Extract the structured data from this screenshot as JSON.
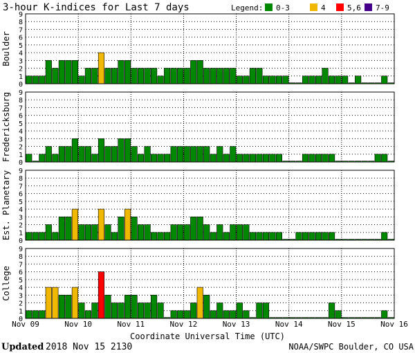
{
  "header": {
    "title": "3-hour K-indices for Last 7 days",
    "legend_label": "Legend:",
    "legend": [
      {
        "label": "0-3",
        "color": "#008800"
      },
      {
        "label": "4",
        "color": "#f0b800"
      },
      {
        "label": "5,6",
        "color": "#ff0000"
      },
      {
        "label": "7-9",
        "color": "#440088"
      }
    ]
  },
  "footer": {
    "updated_label": "Updated",
    "updated_value": "2018 Nov 15 2130",
    "credit": "NOAA/SWPC Boulder, CO USA"
  },
  "chart_data": {
    "type": "bar",
    "xlabel": "Coordinate Universal Time (UTC)",
    "x_tick_labels": [
      "Nov 09",
      "Nov 10",
      "Nov 11",
      "Nov 12",
      "Nov 13",
      "Nov 14",
      "Nov 15",
      "Nov 16"
    ],
    "ylim": [
      0,
      9
    ],
    "y_ticks": [
      "0",
      "1",
      "2",
      "3",
      "4",
      "5",
      "6",
      "7",
      "8",
      "9"
    ],
    "bins_per_day": 8,
    "series": [
      {
        "name": "Boulder",
        "values": [
          1,
          1,
          1,
          3,
          2,
          3,
          3,
          3,
          1,
          2,
          2,
          4,
          2,
          2,
          3,
          3,
          2,
          2,
          2,
          2,
          1,
          2,
          2,
          2,
          2,
          3,
          3,
          2,
          2,
          2,
          2,
          2,
          1,
          1,
          2,
          2,
          1,
          1,
          1,
          1,
          0,
          0,
          1,
          1,
          1,
          2,
          1,
          1,
          1,
          0,
          1,
          0,
          0,
          0,
          1,
          0
        ]
      },
      {
        "name": "Fredericksburg",
        "values": [
          1,
          0,
          1,
          2,
          1,
          2,
          2,
          3,
          2,
          2,
          1,
          3,
          2,
          2,
          3,
          3,
          2,
          1,
          2,
          1,
          1,
          1,
          2,
          2,
          2,
          2,
          2,
          2,
          1,
          2,
          1,
          2,
          1,
          1,
          1,
          1,
          1,
          1,
          1,
          0,
          0,
          0,
          1,
          1,
          1,
          1,
          1,
          0,
          0,
          0,
          0,
          0,
          0,
          1,
          1,
          0
        ]
      },
      {
        "name": "Est. Planetary",
        "values": [
          1,
          1,
          1,
          2,
          1,
          3,
          3,
          4,
          2,
          2,
          2,
          4,
          2,
          1,
          3,
          4,
          3,
          2,
          2,
          1,
          1,
          1,
          2,
          2,
          2,
          3,
          3,
          2,
          1,
          2,
          1,
          2,
          2,
          2,
          1,
          1,
          1,
          1,
          1,
          0,
          0,
          1,
          1,
          1,
          1,
          1,
          1,
          0,
          0,
          0,
          0,
          0,
          0,
          0,
          1,
          0
        ]
      },
      {
        "name": "College",
        "values": [
          1,
          1,
          1,
          4,
          4,
          3,
          3,
          4,
          2,
          1,
          2,
          6,
          3,
          2,
          2,
          3,
          3,
          2,
          2,
          3,
          2,
          0,
          1,
          1,
          1,
          2,
          4,
          3,
          1,
          2,
          1,
          1,
          2,
          1,
          0,
          2,
          2,
          0,
          0,
          0,
          0,
          0,
          0,
          0,
          0,
          0,
          2,
          1,
          0,
          0,
          0,
          0,
          0,
          0,
          1,
          0
        ]
      }
    ]
  }
}
